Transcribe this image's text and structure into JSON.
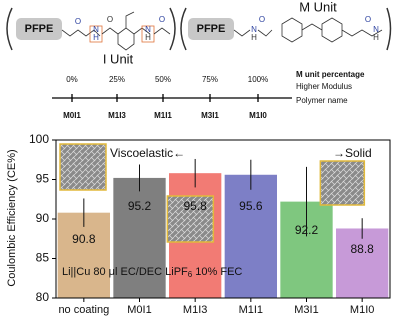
{
  "structure": {
    "left_block": "PFPE",
    "left_unit": "I Unit",
    "right_block": "PFPE",
    "right_unit": "M Unit",
    "atoms": [
      "N",
      "H",
      "O",
      "O",
      "N",
      "H",
      "O",
      "N",
      "H",
      "O",
      "N",
      "H",
      "O"
    ]
  },
  "timeline": {
    "percentages": [
      "0%",
      "25%",
      "50%",
      "75%",
      "100%"
    ],
    "polymers": [
      "M0I1",
      "M1I3",
      "M1I1",
      "M3I1",
      "M1I0"
    ],
    "axis_title": "M unit percentage",
    "direction": "Higher Modulus",
    "row_label": "Polymer name"
  },
  "chart_data": {
    "type": "bar",
    "ylabel": "Coulombic Efficiency (CE%)",
    "categories": [
      "no coating",
      "M0I1",
      "M1I3",
      "M1I1",
      "M3I1",
      "M1I0"
    ],
    "values": [
      90.8,
      95.2,
      95.8,
      95.6,
      92.2,
      88.8
    ],
    "errors": [
      1.8,
      1.7,
      1.8,
      1.9,
      4.4,
      1.3
    ],
    "colors": [
      "#d9b68c",
      "#7f7f7f",
      "#f27b74",
      "#7d7fc6",
      "#7fc77f",
      "#c79ad8"
    ],
    "ylim": [
      80,
      100
    ],
    "yticks": [
      80,
      85,
      90,
      95,
      100
    ],
    "annotations": {
      "left": "Viscoelastic←",
      "right": "→Solid",
      "electrolyte": [
        "Li||Cu 80 μl EC/DEC LiPF",
        "6",
        " 10% FEC"
      ]
    }
  }
}
